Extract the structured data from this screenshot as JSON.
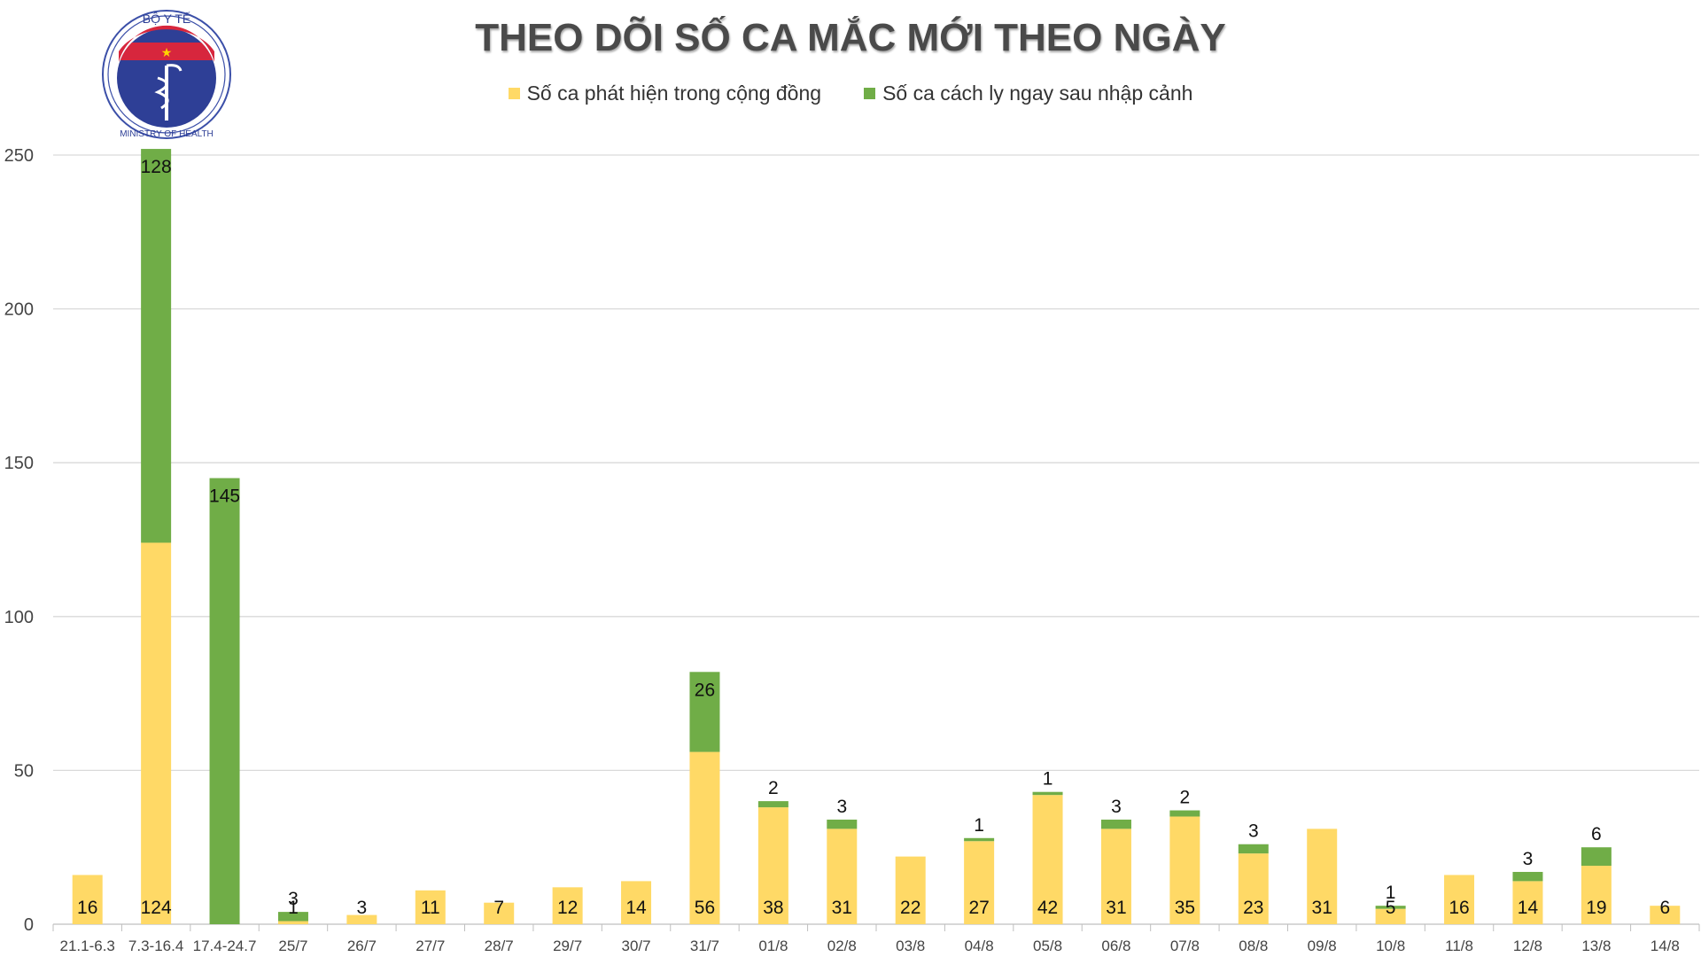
{
  "logo": {
    "top_text": "BỘ Y TẾ",
    "bottom_text": "MINISTRY OF HEALTH"
  },
  "colors": {
    "community": "#FFD966",
    "quarantine": "#70AD47",
    "grid": "#D9D9D9",
    "axis": "#BFBFBF"
  },
  "chart_data": {
    "type": "bar",
    "stacked": true,
    "title": "THEO DÕI SỐ CA MẮC MỚI THEO NGÀY",
    "xlabel": "",
    "ylabel": "",
    "ylim": [
      0,
      250
    ],
    "yticks": [
      0,
      50,
      100,
      150,
      200,
      250
    ],
    "grid": true,
    "legend_position": "top-center",
    "categories": [
      "21.1-6.3",
      "7.3-16.4",
      "17.4-24.7",
      "25/7",
      "26/7",
      "27/7",
      "28/7",
      "29/7",
      "30/7",
      "31/7",
      "01/8",
      "02/8",
      "03/8",
      "04/8",
      "05/8",
      "06/8",
      "07/8",
      "08/8",
      "09/8",
      "10/8",
      "11/8",
      "12/8",
      "13/8",
      "14/8"
    ],
    "series": [
      {
        "name": "Số ca phát hiện trong cộng đồng",
        "values": [
          16,
          124,
          0,
          1,
          3,
          11,
          7,
          12,
          14,
          56,
          38,
          31,
          22,
          27,
          42,
          31,
          35,
          23,
          31,
          5,
          16,
          14,
          19,
          6
        ]
      },
      {
        "name": "Số ca cách ly ngay sau nhập cảnh",
        "values": [
          0,
          128,
          145,
          3,
          0,
          0,
          0,
          0,
          0,
          26,
          2,
          3,
          0,
          1,
          1,
          3,
          2,
          3,
          0,
          1,
          0,
          3,
          6,
          0
        ]
      }
    ]
  }
}
